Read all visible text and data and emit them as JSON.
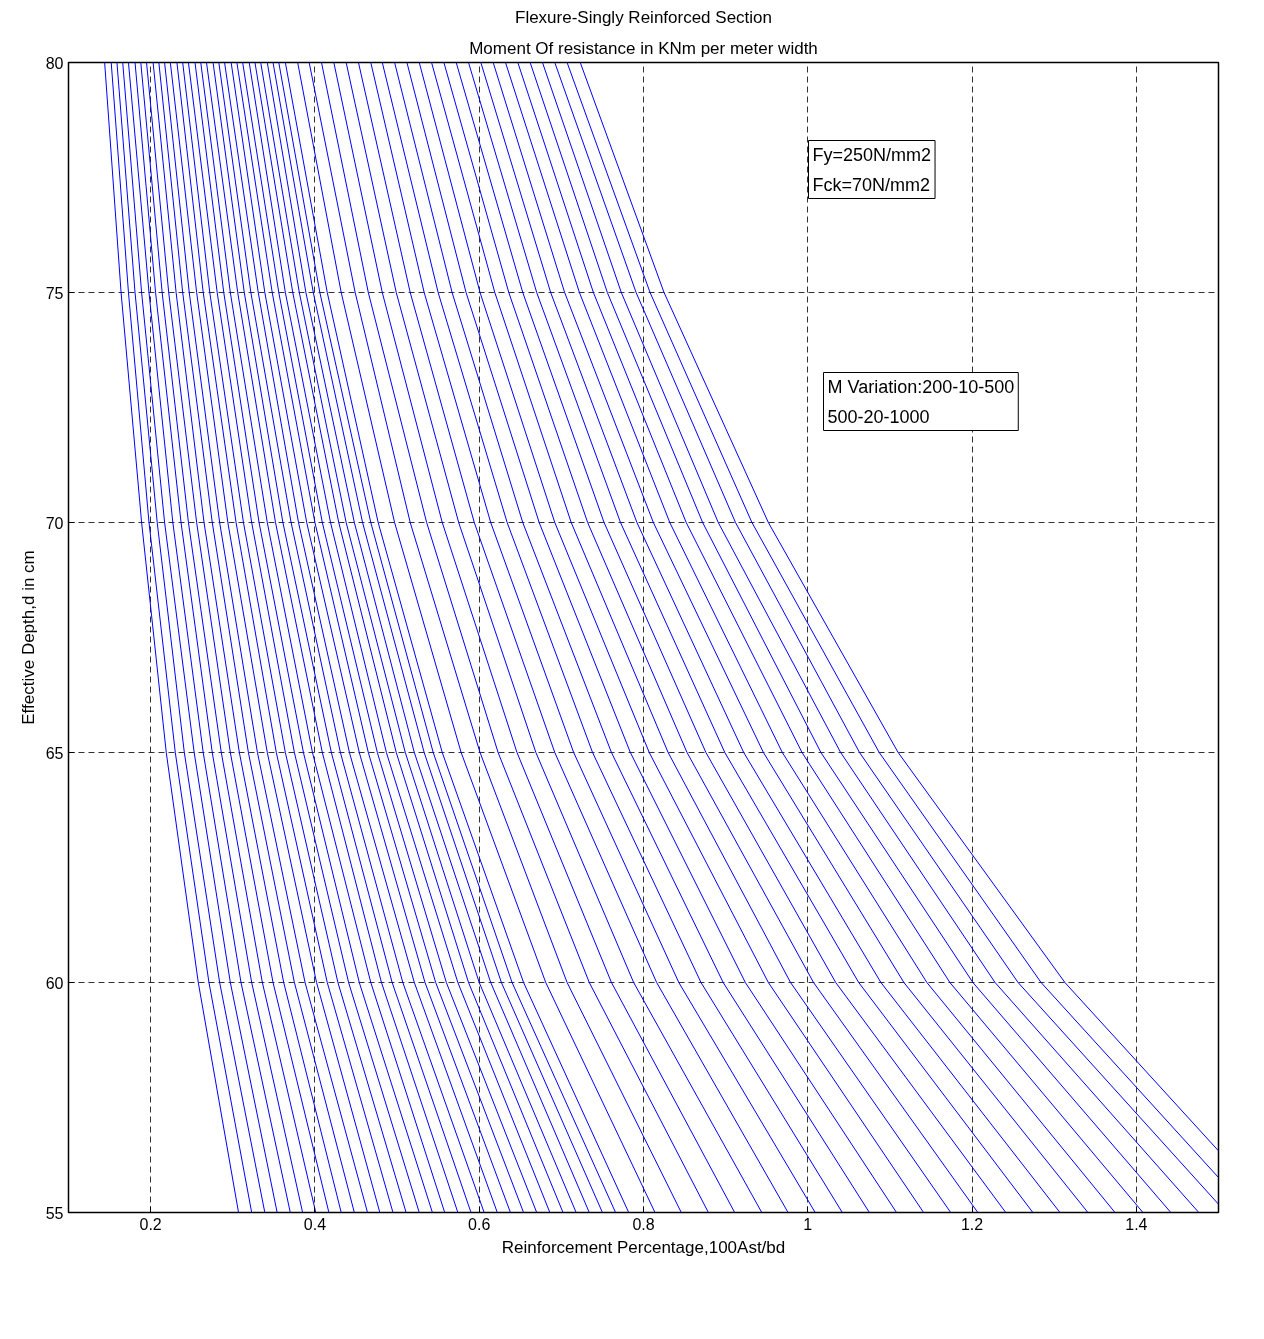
{
  "chart_data": {
    "type": "line",
    "title": "Flexure-Singly Reinforced Section",
    "subtitle": "Moment Of resistance in KNm per meter width",
    "xlabel": "Reinforcement Percentage,100Ast/bd",
    "ylabel": "Effective Depth,d in cm",
    "xlim": [
      0.1,
      1.5
    ],
    "xticks": [
      0.2,
      0.4,
      0.6,
      0.8,
      1,
      1.2,
      1.4
    ],
    "ylim": [
      55,
      80
    ],
    "yticks": [
      55,
      60,
      65,
      70,
      75,
      80
    ],
    "grid": true,
    "marker": "none",
    "line_style": "solid",
    "annotations": [
      "Fy=250N/mm2\nFck=70N/mm2",
      "M Variation:200-10-500\n500-20-1000"
    ],
    "series": [
      {
        "color": "#0000ff",
        "x": [
          0.144,
          0.164,
          0.189,
          0.219,
          0.258,
          0.307
        ],
        "values": [
          80,
          75,
          70,
          65,
          60,
          55
        ]
      },
      {
        "color": "#0000ff",
        "x": [
          0.152,
          0.173,
          0.198,
          0.23,
          0.271,
          0.323
        ],
        "values": [
          80,
          75,
          70,
          65,
          60,
          55
        ]
      },
      {
        "color": "#0000ff",
        "x": [
          0.159,
          0.181,
          0.208,
          0.241,
          0.284,
          0.339
        ],
        "values": [
          80,
          75,
          70,
          65,
          60,
          55
        ]
      },
      {
        "color": "#0000ff",
        "x": [
          0.166,
          0.189,
          0.217,
          0.253,
          0.297,
          0.354
        ],
        "values": [
          80,
          75,
          70,
          65,
          60,
          55
        ]
      },
      {
        "color": "#0000ff",
        "x": [
          0.173,
          0.198,
          0.227,
          0.264,
          0.31,
          0.37
        ],
        "values": [
          80,
          75,
          70,
          65,
          60,
          55
        ]
      },
      {
        "color": "#0000ff",
        "x": [
          0.181,
          0.206,
          0.237,
          0.275,
          0.323,
          0.385
        ],
        "values": [
          80,
          75,
          70,
          65,
          60,
          55
        ]
      },
      {
        "color": "#0000ff",
        "x": [
          0.188,
          0.214,
          0.246,
          0.286,
          0.336,
          0.401
        ],
        "values": [
          80,
          75,
          70,
          65,
          60,
          55
        ]
      },
      {
        "color": "#0000ff",
        "x": [
          0.195,
          0.222,
          0.256,
          0.297,
          0.349,
          0.417
        ],
        "values": [
          80,
          75,
          70,
          65,
          60,
          55
        ]
      },
      {
        "color": "#0000ff",
        "x": [
          0.203,
          0.231,
          0.265,
          0.308,
          0.362,
          0.432
        ],
        "values": [
          80,
          75,
          70,
          65,
          60,
          55
        ]
      },
      {
        "color": "#0000ff",
        "x": [
          0.21,
          0.239,
          0.275,
          0.319,
          0.375,
          0.448
        ],
        "values": [
          80,
          75,
          70,
          65,
          60,
          55
        ]
      },
      {
        "color": "#0000ff",
        "x": [
          0.217,
          0.247,
          0.284,
          0.33,
          0.388,
          0.464
        ],
        "values": [
          80,
          75,
          70,
          65,
          60,
          55
        ]
      },
      {
        "color": "#0000ff",
        "x": [
          0.224,
          0.256,
          0.294,
          0.342,
          0.402,
          0.479
        ],
        "values": [
          80,
          75,
          70,
          65,
          60,
          55
        ]
      },
      {
        "color": "#0000ff",
        "x": [
          0.232,
          0.264,
          0.304,
          0.353,
          0.415,
          0.495
        ],
        "values": [
          80,
          75,
          70,
          65,
          60,
          55
        ]
      },
      {
        "color": "#0000ff",
        "x": [
          0.239,
          0.272,
          0.313,
          0.364,
          0.428,
          0.511
        ],
        "values": [
          80,
          75,
          70,
          65,
          60,
          55
        ]
      },
      {
        "color": "#0000ff",
        "x": [
          0.246,
          0.281,
          0.323,
          0.375,
          0.441,
          0.527
        ],
        "values": [
          80,
          75,
          70,
          65,
          60,
          55
        ]
      },
      {
        "color": "#0000ff",
        "x": [
          0.254,
          0.289,
          0.332,
          0.386,
          0.454,
          0.543
        ],
        "values": [
          80,
          75,
          70,
          65,
          60,
          55
        ]
      },
      {
        "color": "#0000ff",
        "x": [
          0.261,
          0.297,
          0.342,
          0.397,
          0.468,
          0.558
        ],
        "values": [
          80,
          75,
          70,
          65,
          60,
          55
        ]
      },
      {
        "color": "#0000ff",
        "x": [
          0.268,
          0.306,
          0.352,
          0.409,
          0.481,
          0.574
        ],
        "values": [
          80,
          75,
          70,
          65,
          60,
          55
        ]
      },
      {
        "color": "#0000ff",
        "x": [
          0.276,
          0.314,
          0.361,
          0.42,
          0.494,
          0.59
        ],
        "values": [
          80,
          75,
          70,
          65,
          60,
          55
        ]
      },
      {
        "color": "#0000ff",
        "x": [
          0.283,
          0.322,
          0.371,
          0.431,
          0.507,
          0.606
        ],
        "values": [
          80,
          75,
          70,
          65,
          60,
          55
        ]
      },
      {
        "color": "#0000ff",
        "x": [
          0.29,
          0.331,
          0.38,
          0.442,
          0.521,
          0.622
        ],
        "values": [
          80,
          75,
          70,
          65,
          60,
          55
        ]
      },
      {
        "color": "#0000ff",
        "x": [
          0.298,
          0.339,
          0.39,
          0.454,
          0.534,
          0.638
        ],
        "values": [
          80,
          75,
          70,
          65,
          60,
          55
        ]
      },
      {
        "color": "#0000ff",
        "x": [
          0.305,
          0.348,
          0.4,
          0.465,
          0.547,
          0.654
        ],
        "values": [
          80,
          75,
          70,
          65,
          60,
          55
        ]
      },
      {
        "color": "#0000ff",
        "x": [
          0.312,
          0.356,
          0.409,
          0.476,
          0.56,
          0.67
        ],
        "values": [
          80,
          75,
          70,
          65,
          60,
          55
        ]
      },
      {
        "color": "#0000ff",
        "x": [
          0.32,
          0.364,
          0.419,
          0.487,
          0.574,
          0.686
        ],
        "values": [
          80,
          75,
          70,
          65,
          60,
          55
        ]
      },
      {
        "color": "#0000ff",
        "x": [
          0.327,
          0.373,
          0.429,
          0.499,
          0.587,
          0.702
        ],
        "values": [
          80,
          75,
          70,
          65,
          60,
          55
        ]
      },
      {
        "color": "#0000ff",
        "x": [
          0.334,
          0.381,
          0.438,
          0.51,
          0.6,
          0.718
        ],
        "values": [
          80,
          75,
          70,
          65,
          60,
          55
        ]
      },
      {
        "color": "#0000ff",
        "x": [
          0.342,
          0.389,
          0.448,
          0.521,
          0.614,
          0.734
        ],
        "values": [
          80,
          75,
          70,
          65,
          60,
          55
        ]
      },
      {
        "color": "#0000ff",
        "x": [
          0.349,
          0.398,
          0.458,
          0.533,
          0.627,
          0.75
        ],
        "values": [
          80,
          75,
          70,
          65,
          60,
          55
        ]
      },
      {
        "color": "#0000ff",
        "x": [
          0.356,
          0.406,
          0.468,
          0.544,
          0.64,
          0.766
        ],
        "values": [
          80,
          75,
          70,
          65,
          60,
          55
        ]
      },
      {
        "color": "#0000ff",
        "x": [
          0.364,
          0.415,
          0.477,
          0.555,
          0.654,
          0.782
        ],
        "values": [
          80,
          75,
          70,
          65,
          60,
          55
        ]
      },
      {
        "color": "#0000ff",
        "x": [
          0.379,
          0.432,
          0.497,
          0.578,
          0.681,
          0.814
        ],
        "values": [
          80,
          75,
          70,
          65,
          60,
          55
        ]
      },
      {
        "color": "#0000ff",
        "x": [
          0.393,
          0.449,
          0.516,
          0.601,
          0.707,
          0.846
        ],
        "values": [
          80,
          75,
          70,
          65,
          60,
          55
        ]
      },
      {
        "color": "#0000ff",
        "x": [
          0.408,
          0.465,
          0.536,
          0.623,
          0.734,
          0.879
        ],
        "values": [
          80,
          75,
          70,
          65,
          60,
          55
        ]
      },
      {
        "color": "#0000ff",
        "x": [
          0.423,
          0.482,
          0.555,
          0.646,
          0.761,
          0.911
        ],
        "values": [
          80,
          75,
          70,
          65,
          60,
          55
        ]
      },
      {
        "color": "#0000ff",
        "x": [
          0.438,
          0.499,
          0.575,
          0.669,
          0.788,
          0.944
        ],
        "values": [
          80,
          75,
          70,
          65,
          60,
          55
        ]
      },
      {
        "color": "#0000ff",
        "x": [
          0.453,
          0.516,
          0.594,
          0.692,
          0.816,
          0.976
        ],
        "values": [
          80,
          75,
          70,
          65,
          60,
          55
        ]
      },
      {
        "color": "#0000ff",
        "x": [
          0.468,
          0.533,
          0.614,
          0.715,
          0.843,
          1.009
        ],
        "values": [
          80,
          75,
          70,
          65,
          60,
          55
        ]
      },
      {
        "color": "#0000ff",
        "x": [
          0.482,
          0.55,
          0.634,
          0.738,
          0.87,
          1.042
        ],
        "values": [
          80,
          75,
          70,
          65,
          60,
          55
        ]
      },
      {
        "color": "#0000ff",
        "x": [
          0.497,
          0.567,
          0.653,
          0.761,
          0.897,
          1.075
        ],
        "values": [
          80,
          75,
          70,
          65,
          60,
          55
        ]
      },
      {
        "color": "#0000ff",
        "x": [
          0.512,
          0.584,
          0.673,
          0.784,
          0.924,
          1.108
        ],
        "values": [
          80,
          75,
          70,
          65,
          60,
          55
        ]
      },
      {
        "color": "#0000ff",
        "x": [
          0.527,
          0.601,
          0.692,
          0.807,
          0.952,
          1.141
        ],
        "values": [
          80,
          75,
          70,
          65,
          60,
          55
        ]
      },
      {
        "color": "#0000ff",
        "x": [
          0.542,
          0.619,
          0.712,
          0.83,
          0.979,
          1.174
        ],
        "values": [
          80,
          75,
          70,
          65,
          60,
          55
        ]
      },
      {
        "color": "#0000ff",
        "x": [
          0.557,
          0.636,
          0.732,
          0.853,
          1.007,
          1.207
        ],
        "values": [
          80,
          75,
          70,
          65,
          60,
          55
        ]
      },
      {
        "color": "#0000ff",
        "x": [
          0.572,
          0.653,
          0.752,
          0.876,
          1.034,
          1.241
        ],
        "values": [
          80,
          75,
          70,
          65,
          60,
          55
        ]
      },
      {
        "color": "#0000ff",
        "x": [
          0.587,
          0.67,
          0.772,
          0.899,
          1.062,
          1.274
        ],
        "values": [
          80,
          75,
          70,
          65,
          60,
          55
        ]
      },
      {
        "color": "#0000ff",
        "x": [
          0.602,
          0.687,
          0.792,
          0.922,
          1.089,
          1.307
        ],
        "values": [
          80,
          75,
          70,
          65,
          60,
          55
        ]
      },
      {
        "color": "#0000ff",
        "x": [
          0.617,
          0.704,
          0.812,
          0.946,
          1.117,
          1.341
        ],
        "values": [
          80,
          75,
          70,
          65,
          60,
          55
        ]
      },
      {
        "color": "#0000ff",
        "x": [
          0.632,
          0.722,
          0.832,
          0.969,
          1.145,
          1.374
        ],
        "values": [
          80,
          75,
          70,
          65,
          60,
          55
        ]
      },
      {
        "color": "#0000ff",
        "x": [
          0.647,
          0.739,
          0.852,
          0.993,
          1.173,
          1.408
        ],
        "values": [
          80,
          75,
          70,
          65,
          60,
          55
        ]
      },
      {
        "color": "#0000ff",
        "x": [
          0.662,
          0.756,
          0.872,
          1.016,
          1.201,
          1.442
        ],
        "values": [
          80,
          75,
          70,
          65,
          60,
          55
        ]
      },
      {
        "color": "#0000ff",
        "x": [
          0.677,
          0.773,
          0.891,
          1.04,
          1.228,
          1.476
        ],
        "values": [
          80,
          75,
          70,
          65,
          60,
          55
        ]
      },
      {
        "color": "#0000ff",
        "x": [
          0.692,
          0.791,
          0.912,
          1.063,
          1.256,
          1.5
        ],
        "values": [
          80,
          75,
          70,
          65,
          60,
          55.18
        ]
      },
      {
        "color": "#0000ff",
        "x": [
          0.707,
          0.808,
          0.932,
          1.087,
          1.284,
          1.5
        ],
        "values": [
          80,
          75,
          70,
          65,
          60,
          55.76
        ]
      },
      {
        "color": "#0000ff",
        "x": [
          0.723,
          0.825,
          0.952,
          1.11,
          1.313,
          1.5
        ],
        "values": [
          80,
          75,
          70,
          65,
          60,
          56.34
        ]
      }
    ]
  }
}
